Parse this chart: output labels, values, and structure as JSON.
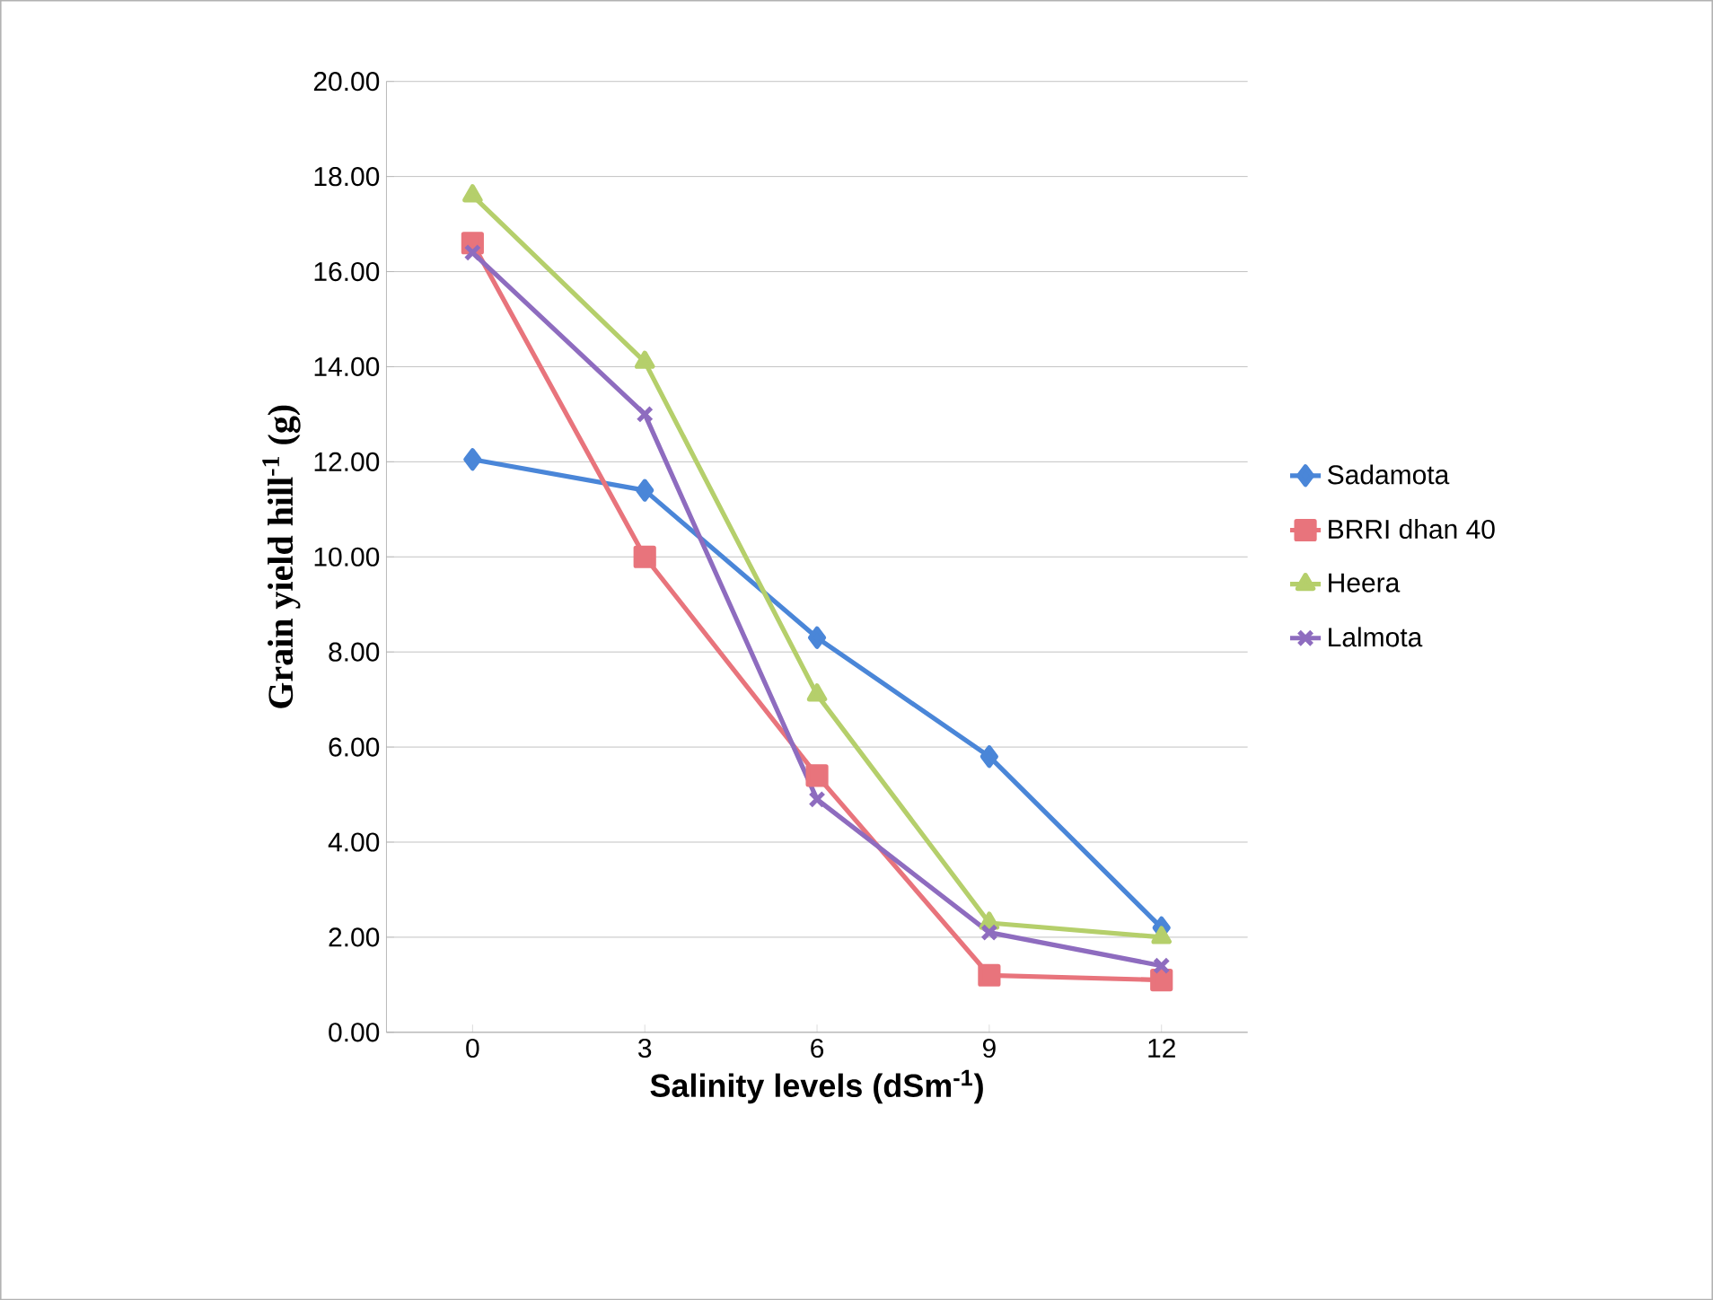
{
  "chart_data": {
    "type": "line",
    "xlabel": "Salinity levels (dSm$^{-1}$)",
    "ylabel": "Grain yield hill$^{-1}$ (g)",
    "categories": [
      "0",
      "3",
      "6",
      "9",
      "12"
    ],
    "series": [
      {
        "name": "Sadamota",
        "color": "#4a86d8",
        "marker": "diamond",
        "values": [
          12.05,
          11.4,
          8.3,
          5.8,
          2.2
        ]
      },
      {
        "name": "BRRI dhan 40",
        "color": "#e8747c",
        "marker": "square",
        "values": [
          16.6,
          10.0,
          5.4,
          1.2,
          1.1
        ]
      },
      {
        "name": "Heera",
        "color": "#b5cf6b",
        "marker": "triangle",
        "values": [
          17.6,
          14.1,
          7.1,
          2.3,
          2.0
        ]
      },
      {
        "name": "Lalmota",
        "color": "#8e6cbf",
        "marker": "cross",
        "values": [
          16.4,
          13.0,
          4.9,
          2.1,
          1.4
        ]
      }
    ],
    "ylim": [
      0,
      20
    ],
    "yticks": [
      {
        "value": 0,
        "label": "0.00"
      },
      {
        "value": 2,
        "label": "2.00"
      },
      {
        "value": 4,
        "label": "4.00"
      },
      {
        "value": 6,
        "label": "6.00"
      },
      {
        "value": 8,
        "label": "8.00"
      },
      {
        "value": 10,
        "label": "10.00"
      },
      {
        "value": 12,
        "label": "12.00"
      },
      {
        "value": 14,
        "label": "14.00"
      },
      {
        "value": 16,
        "label": "16.00"
      },
      {
        "value": 18,
        "label": "18.00"
      },
      {
        "value": 20,
        "label": "20.00"
      }
    ],
    "grid": "y",
    "legend": "right",
    "line_style": "solid"
  }
}
